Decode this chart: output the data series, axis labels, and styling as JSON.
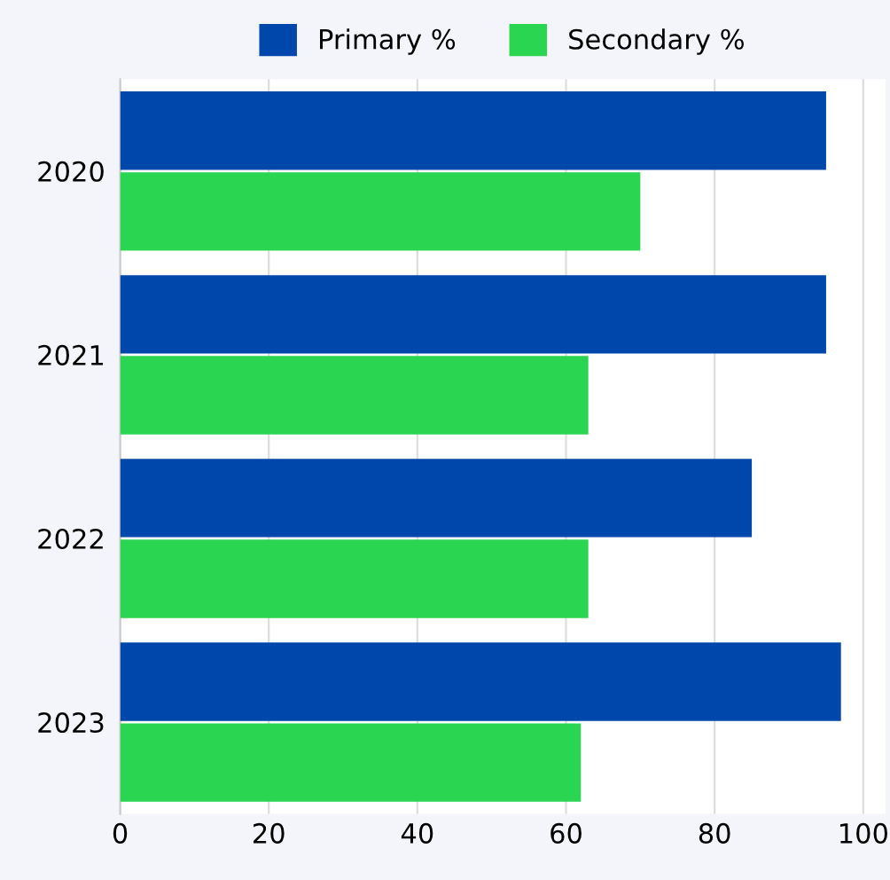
{
  "chart_data": {
    "type": "bar",
    "orientation": "horizontal",
    "categories": [
      "2020",
      "2021",
      "2022",
      "2023"
    ],
    "series": [
      {
        "name": "Primary %",
        "color": "#0047ab",
        "values": [
          95,
          95,
          85,
          97
        ]
      },
      {
        "name": "Secondary %",
        "color": "#2ad552",
        "values": [
          70,
          63,
          63,
          62
        ]
      }
    ],
    "xlim": [
      0,
      103
    ],
    "xticks": [
      0,
      20,
      40,
      60,
      80,
      100
    ],
    "grid": "x",
    "legend": "top"
  }
}
